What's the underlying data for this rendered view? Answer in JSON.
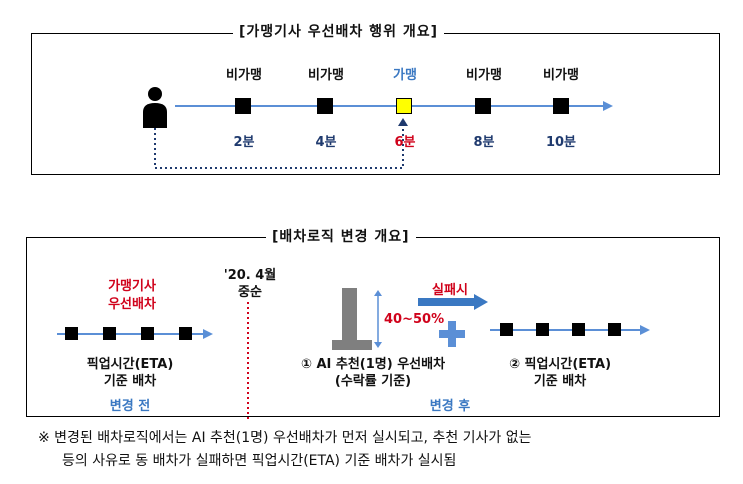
{
  "top_panel": {
    "title": "[가맹기사 우선배차 행위 개요]",
    "nodes": [
      {
        "status": "비가맹",
        "time": "2분",
        "highlight": false
      },
      {
        "status": "비가맹",
        "time": "4분",
        "highlight": false
      },
      {
        "status": "가맹",
        "time": "6분",
        "highlight": true
      },
      {
        "status": "비가맹",
        "time": "8분",
        "highlight": false
      },
      {
        "status": "비가맹",
        "time": "10분",
        "highlight": false
      }
    ]
  },
  "bottom_panel": {
    "title": "[배차로직 변경 개요]",
    "before": {
      "header_line1": "가맹기사",
      "header_line2": "우선배차",
      "method_line1": "픽업시간(ETA)",
      "method_line2": "기준 배차",
      "caption": "변경 전"
    },
    "change_date_line1": "'20. 4월",
    "change_date_line2": "중순",
    "after": {
      "fail_label": "실패시",
      "percent_label": "40~50%",
      "step1_line1": "① AI 추천(1명) 우선배차",
      "step1_line2": "(수락률 기준)",
      "step2_line1": "② 픽업시간(ETA)",
      "step2_line2": "기준 배차",
      "caption": "변경 후"
    }
  },
  "footnote": {
    "line1": "※  변경된 배차로직에서는 AI 추천(1명) 우선배차가 먼저 실시되고, 추천 기사가 없는",
    "line2": "등의 사유로 동 배차가 실패하면 픽업시간(ETA) 기준 배차가 실시됨"
  },
  "colors": {
    "navy": "#1f3a6e",
    "red": "#d0021b",
    "blue": "#3a78c2",
    "highlight": "#ffff00",
    "axis": "#5b8fd6",
    "bar": "#7f7f7f"
  }
}
